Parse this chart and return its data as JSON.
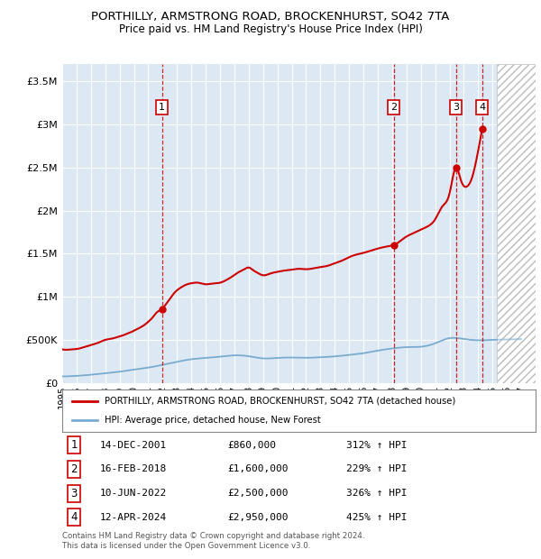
{
  "title": "PORTHILLY, ARMSTRONG ROAD, BROCKENHURST, SO42 7TA",
  "subtitle": "Price paid vs. HM Land Registry's House Price Index (HPI)",
  "ylabel_ticks": [
    "£0",
    "£500K",
    "£1M",
    "£1.5M",
    "£2M",
    "£2.5M",
    "£3M",
    "£3.5M"
  ],
  "ytick_values": [
    0,
    500000,
    1000000,
    1500000,
    2000000,
    2500000,
    3000000,
    3500000
  ],
  "ylim": [
    0,
    3700000
  ],
  "xlim_start": 1995,
  "xlim_end": 2028,
  "background_color": "#dce9f5",
  "grid_color": "#ffffff",
  "red_line_color": "#cc0000",
  "blue_line_color": "#7aabcf",
  "sale_points": [
    {
      "num": 1,
      "year": 2001.96,
      "price": 860000,
      "label": "14-DEC-2001",
      "pct": "312%"
    },
    {
      "num": 2,
      "year": 2018.12,
      "price": 1600000,
      "label": "16-FEB-2018",
      "pct": "229%"
    },
    {
      "num": 3,
      "year": 2022.44,
      "price": 2500000,
      "label": "10-JUN-2022",
      "pct": "326%"
    },
    {
      "num": 4,
      "year": 2024.28,
      "price": 2950000,
      "label": "12-APR-2024",
      "pct": "425%"
    }
  ],
  "legend_red_label": "PORTHILLY, ARMSTRONG ROAD, BROCKENHURST, SO42 7TA (detached house)",
  "legend_blue_label": "HPI: Average price, detached house, New Forest",
  "footer_text": "Contains HM Land Registry data © Crown copyright and database right 2024.\nThis data is licensed under the Open Government Licence v3.0.",
  "future_start": 2025.3,
  "hpi_years": [
    1995,
    1996,
    1997,
    1998,
    1999,
    2000,
    2001,
    2002,
    2003,
    2004,
    2005,
    2006,
    2007,
    2008,
    2009,
    2010,
    2011,
    2012,
    2013,
    2014,
    2015,
    2016,
    2017,
    2018,
    2019,
    2020,
    2021,
    2022,
    2023,
    2024,
    2025,
    2026,
    2027
  ],
  "hpi_vals": [
    75000,
    82000,
    95000,
    112000,
    130000,
    155000,
    178000,
    210000,
    245000,
    275000,
    290000,
    305000,
    320000,
    310000,
    285000,
    290000,
    295000,
    292000,
    298000,
    308000,
    325000,
    345000,
    375000,
    400000,
    415000,
    420000,
    460000,
    520000,
    510000,
    495000,
    500000,
    505000,
    510000
  ],
  "red_years": [
    1995.0,
    1995.3,
    1995.6,
    1995.9,
    1996.2,
    1996.5,
    1996.8,
    1997.1,
    1997.4,
    1997.7,
    1998.0,
    1998.3,
    1998.6,
    1998.9,
    1999.2,
    1999.5,
    1999.8,
    2000.1,
    2000.4,
    2000.7,
    2001.0,
    2001.3,
    2001.6,
    2001.96,
    2002.3,
    2002.6,
    2002.9,
    2003.2,
    2003.5,
    2003.8,
    2004.1,
    2004.4,
    2004.7,
    2005.0,
    2005.3,
    2005.6,
    2005.9,
    2006.2,
    2006.5,
    2006.8,
    2007.1,
    2007.4,
    2007.7,
    2008.0,
    2008.3,
    2008.6,
    2009.0,
    2009.5,
    2010.0,
    2010.5,
    2011.0,
    2011.5,
    2012.0,
    2012.5,
    2013.0,
    2013.5,
    2014.0,
    2014.5,
    2015.0,
    2015.5,
    2016.0,
    2016.5,
    2017.0,
    2017.5,
    2018.0,
    2018.12,
    2018.5,
    2019.0,
    2019.5,
    2020.0,
    2020.5,
    2021.0,
    2021.5,
    2022.0,
    2022.44,
    2022.8,
    2023.2,
    2023.6,
    2024.0,
    2024.28
  ],
  "red_vals": [
    390000,
    385000,
    388000,
    392000,
    400000,
    415000,
    430000,
    445000,
    460000,
    480000,
    500000,
    510000,
    520000,
    535000,
    550000,
    570000,
    590000,
    615000,
    640000,
    670000,
    710000,
    760000,
    820000,
    860000,
    930000,
    1000000,
    1060000,
    1100000,
    1130000,
    1150000,
    1160000,
    1165000,
    1155000,
    1145000,
    1150000,
    1155000,
    1160000,
    1175000,
    1200000,
    1230000,
    1265000,
    1295000,
    1320000,
    1340000,
    1310000,
    1280000,
    1250000,
    1270000,
    1290000,
    1305000,
    1315000,
    1325000,
    1320000,
    1330000,
    1345000,
    1360000,
    1390000,
    1420000,
    1460000,
    1490000,
    1510000,
    1535000,
    1560000,
    1580000,
    1595000,
    1600000,
    1640000,
    1700000,
    1740000,
    1780000,
    1820000,
    1900000,
    2050000,
    2200000,
    2500000,
    2350000,
    2280000,
    2400000,
    2700000,
    2950000
  ]
}
